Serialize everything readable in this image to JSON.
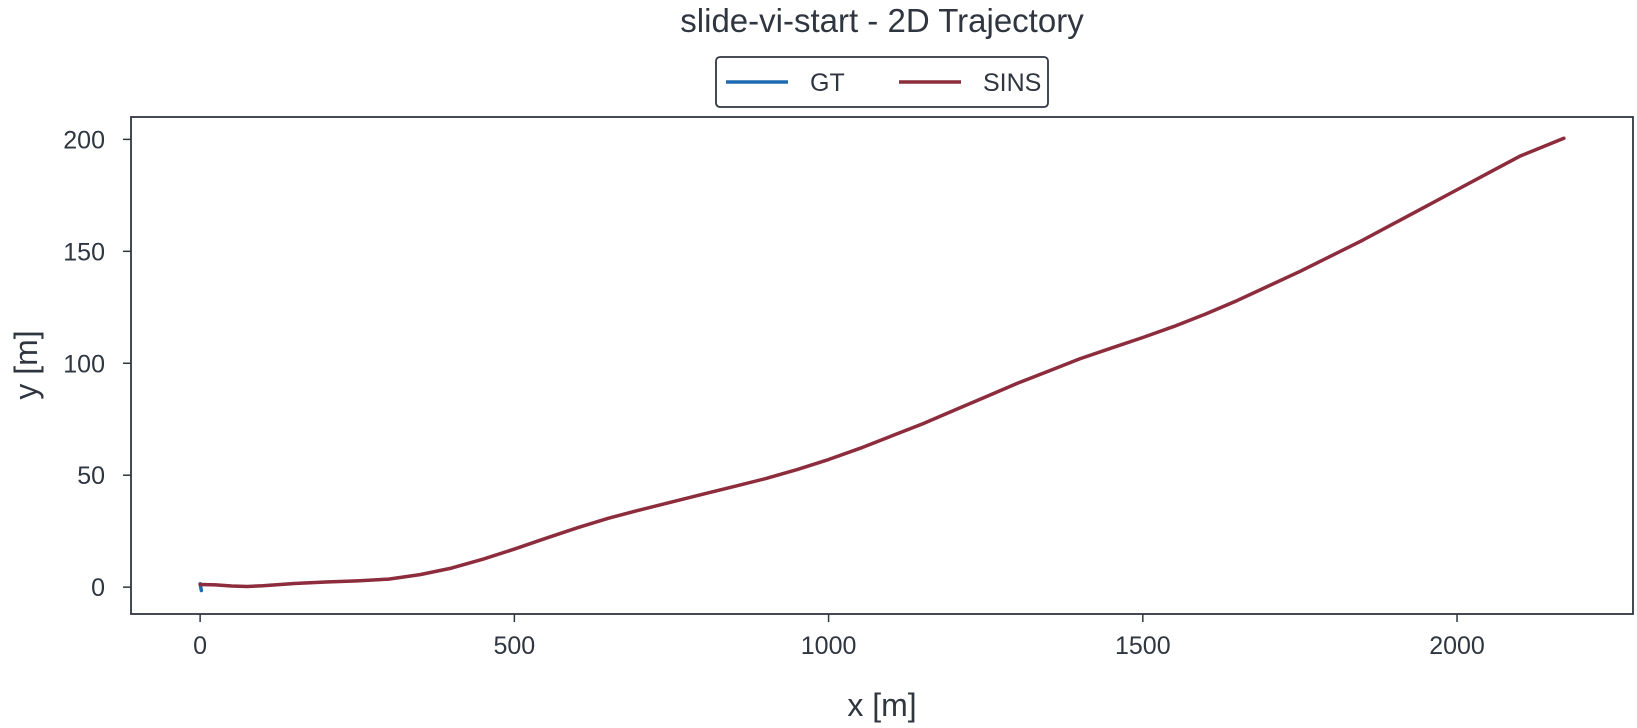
{
  "chart_data": {
    "type": "line",
    "title": "slide-vi-start - 2D Trajectory",
    "xlabel": "x [m]",
    "ylabel": "y [m]",
    "xlim": [
      -110,
      2280
    ],
    "ylim": [
      -12,
      210
    ],
    "xticks": [
      0,
      500,
      1000,
      1500,
      2000
    ],
    "yticks": [
      0,
      50,
      100,
      150,
      200
    ],
    "xtick_labels": [
      "0",
      "500",
      "1000",
      "1500",
      "2000"
    ],
    "ytick_labels": [
      "0",
      "50",
      "100",
      "150",
      "200"
    ],
    "grid": false,
    "legend_position": "top-center",
    "series": [
      {
        "name": "GT",
        "color": "#1f6bb0",
        "points": [
          [
            0,
            1.5
          ],
          [
            0.5,
            0.8
          ],
          [
            1,
            0
          ],
          [
            1.5,
            -0.8
          ],
          [
            2,
            -1.5
          ]
        ]
      },
      {
        "name": "SINS",
        "color": "#8c2c3c",
        "points": [
          [
            0,
            1.2
          ],
          [
            25,
            1.0
          ],
          [
            50,
            0.5
          ],
          [
            75,
            0.3
          ],
          [
            100,
            0.6
          ],
          [
            150,
            1.6
          ],
          [
            200,
            2.3
          ],
          [
            250,
            2.8
          ],
          [
            300,
            3.6
          ],
          [
            350,
            5.6
          ],
          [
            400,
            8.5
          ],
          [
            450,
            12.5
          ],
          [
            500,
            17.0
          ],
          [
            550,
            21.8
          ],
          [
            600,
            26.5
          ],
          [
            650,
            30.8
          ],
          [
            700,
            34.5
          ],
          [
            750,
            38.0
          ],
          [
            800,
            41.5
          ],
          [
            850,
            45.0
          ],
          [
            900,
            48.5
          ],
          [
            950,
            52.5
          ],
          [
            1000,
            57.0
          ],
          [
            1050,
            62.0
          ],
          [
            1100,
            67.5
          ],
          [
            1150,
            73.0
          ],
          [
            1200,
            79.0
          ],
          [
            1250,
            85.0
          ],
          [
            1300,
            91.0
          ],
          [
            1350,
            96.5
          ],
          [
            1400,
            102.0
          ],
          [
            1450,
            106.8
          ],
          [
            1500,
            111.5
          ],
          [
            1550,
            116.5
          ],
          [
            1600,
            122.0
          ],
          [
            1650,
            128.0
          ],
          [
            1700,
            134.5
          ],
          [
            1750,
            141.0
          ],
          [
            1800,
            148.0
          ],
          [
            1850,
            155.0
          ],
          [
            1900,
            162.5
          ],
          [
            1950,
            170.0
          ],
          [
            2000,
            177.5
          ],
          [
            2050,
            185.0
          ],
          [
            2100,
            192.5
          ],
          [
            2170,
            200.5
          ]
        ]
      }
    ]
  }
}
